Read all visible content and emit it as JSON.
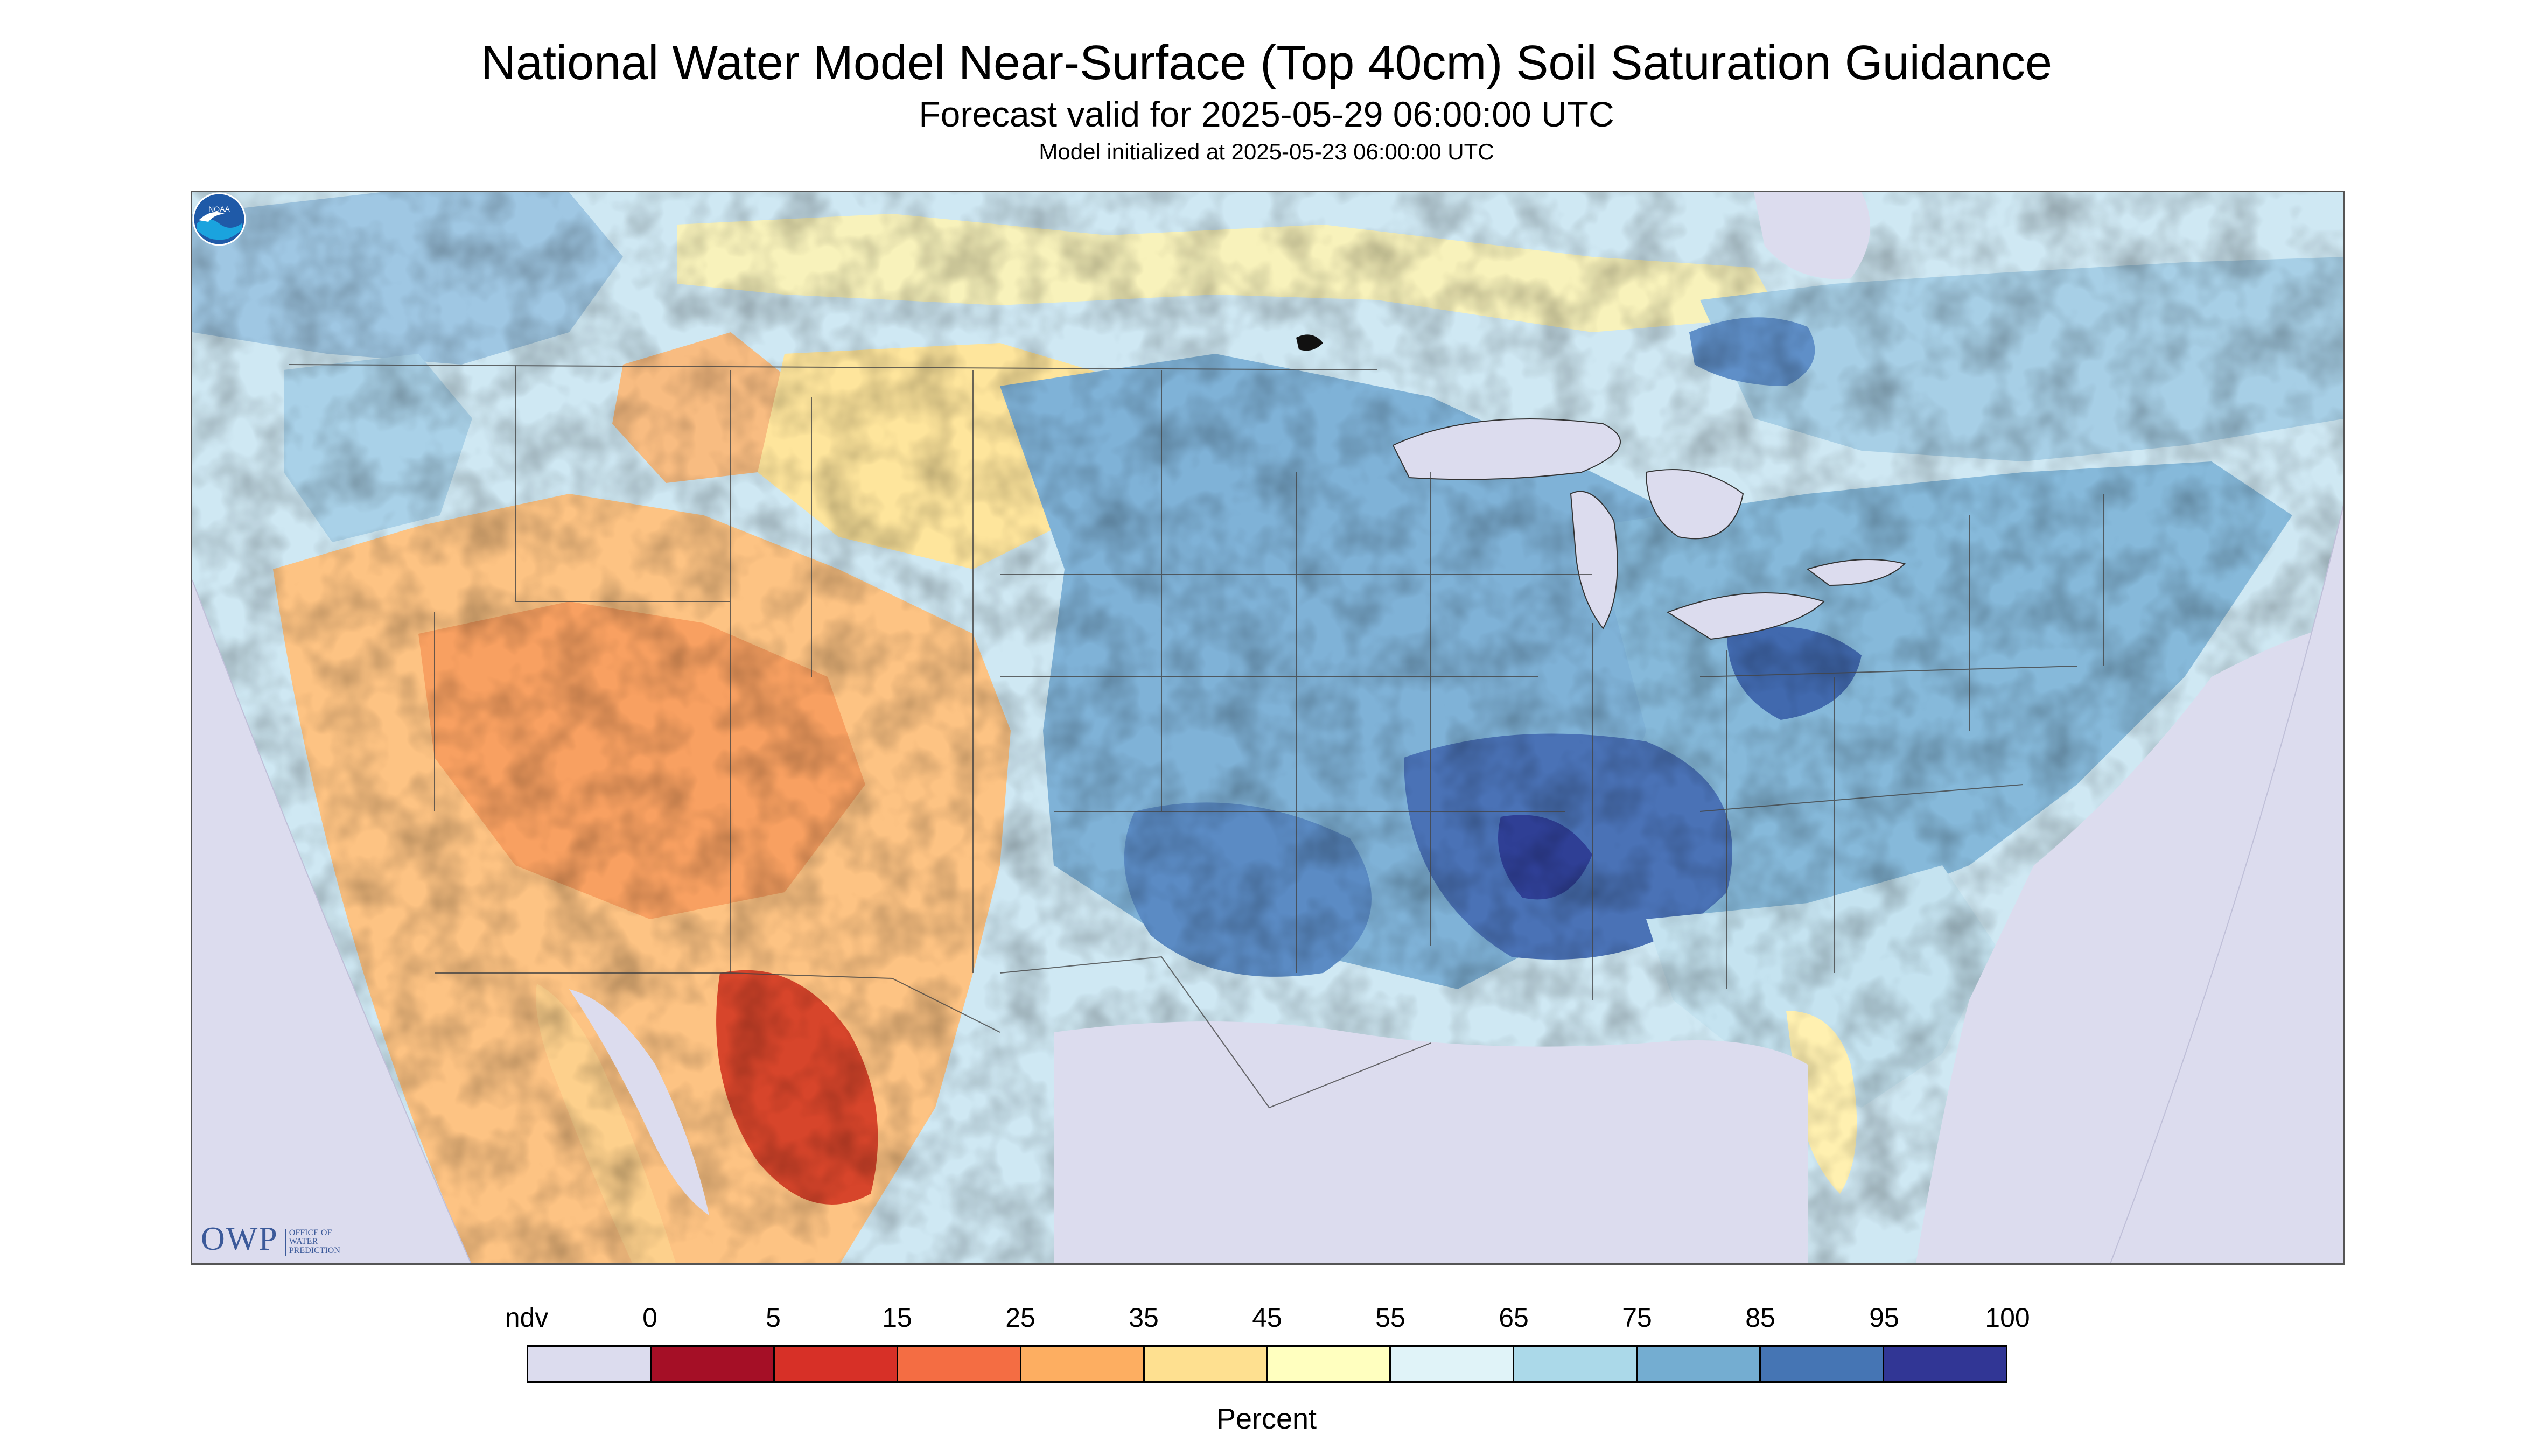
{
  "title": "National Water Model Near-Surface (Top 40cm) Soil Saturation Guidance",
  "subtitle": "Forecast valid for 2025-05-29 06:00:00 UTC",
  "init_note": "Model initialized at 2025-05-23 06:00:00 UTC",
  "logos": {
    "owp_text": "OWP",
    "owp_sub": [
      "OFFICE OF",
      "WATER",
      "PREDICTION"
    ],
    "noaa_text": "NOAA"
  },
  "legend": {
    "unit": "Percent",
    "tick_labels": [
      "ndv",
      "0",
      "5",
      "15",
      "25",
      "35",
      "45",
      "55",
      "65",
      "75",
      "85",
      "95",
      "100"
    ],
    "colors": [
      "#dcdcee",
      "#a50f26",
      "#d73027",
      "#f46d43",
      "#fdae61",
      "#fee090",
      "#ffffbf",
      "#e0f3f8",
      "#abd9e9",
      "#74add1",
      "#4575b4",
      "#313695"
    ]
  },
  "map_colors": {
    "nodata": "#dcdcee",
    "water": "#dcdcee",
    "borders": "#333333"
  }
}
